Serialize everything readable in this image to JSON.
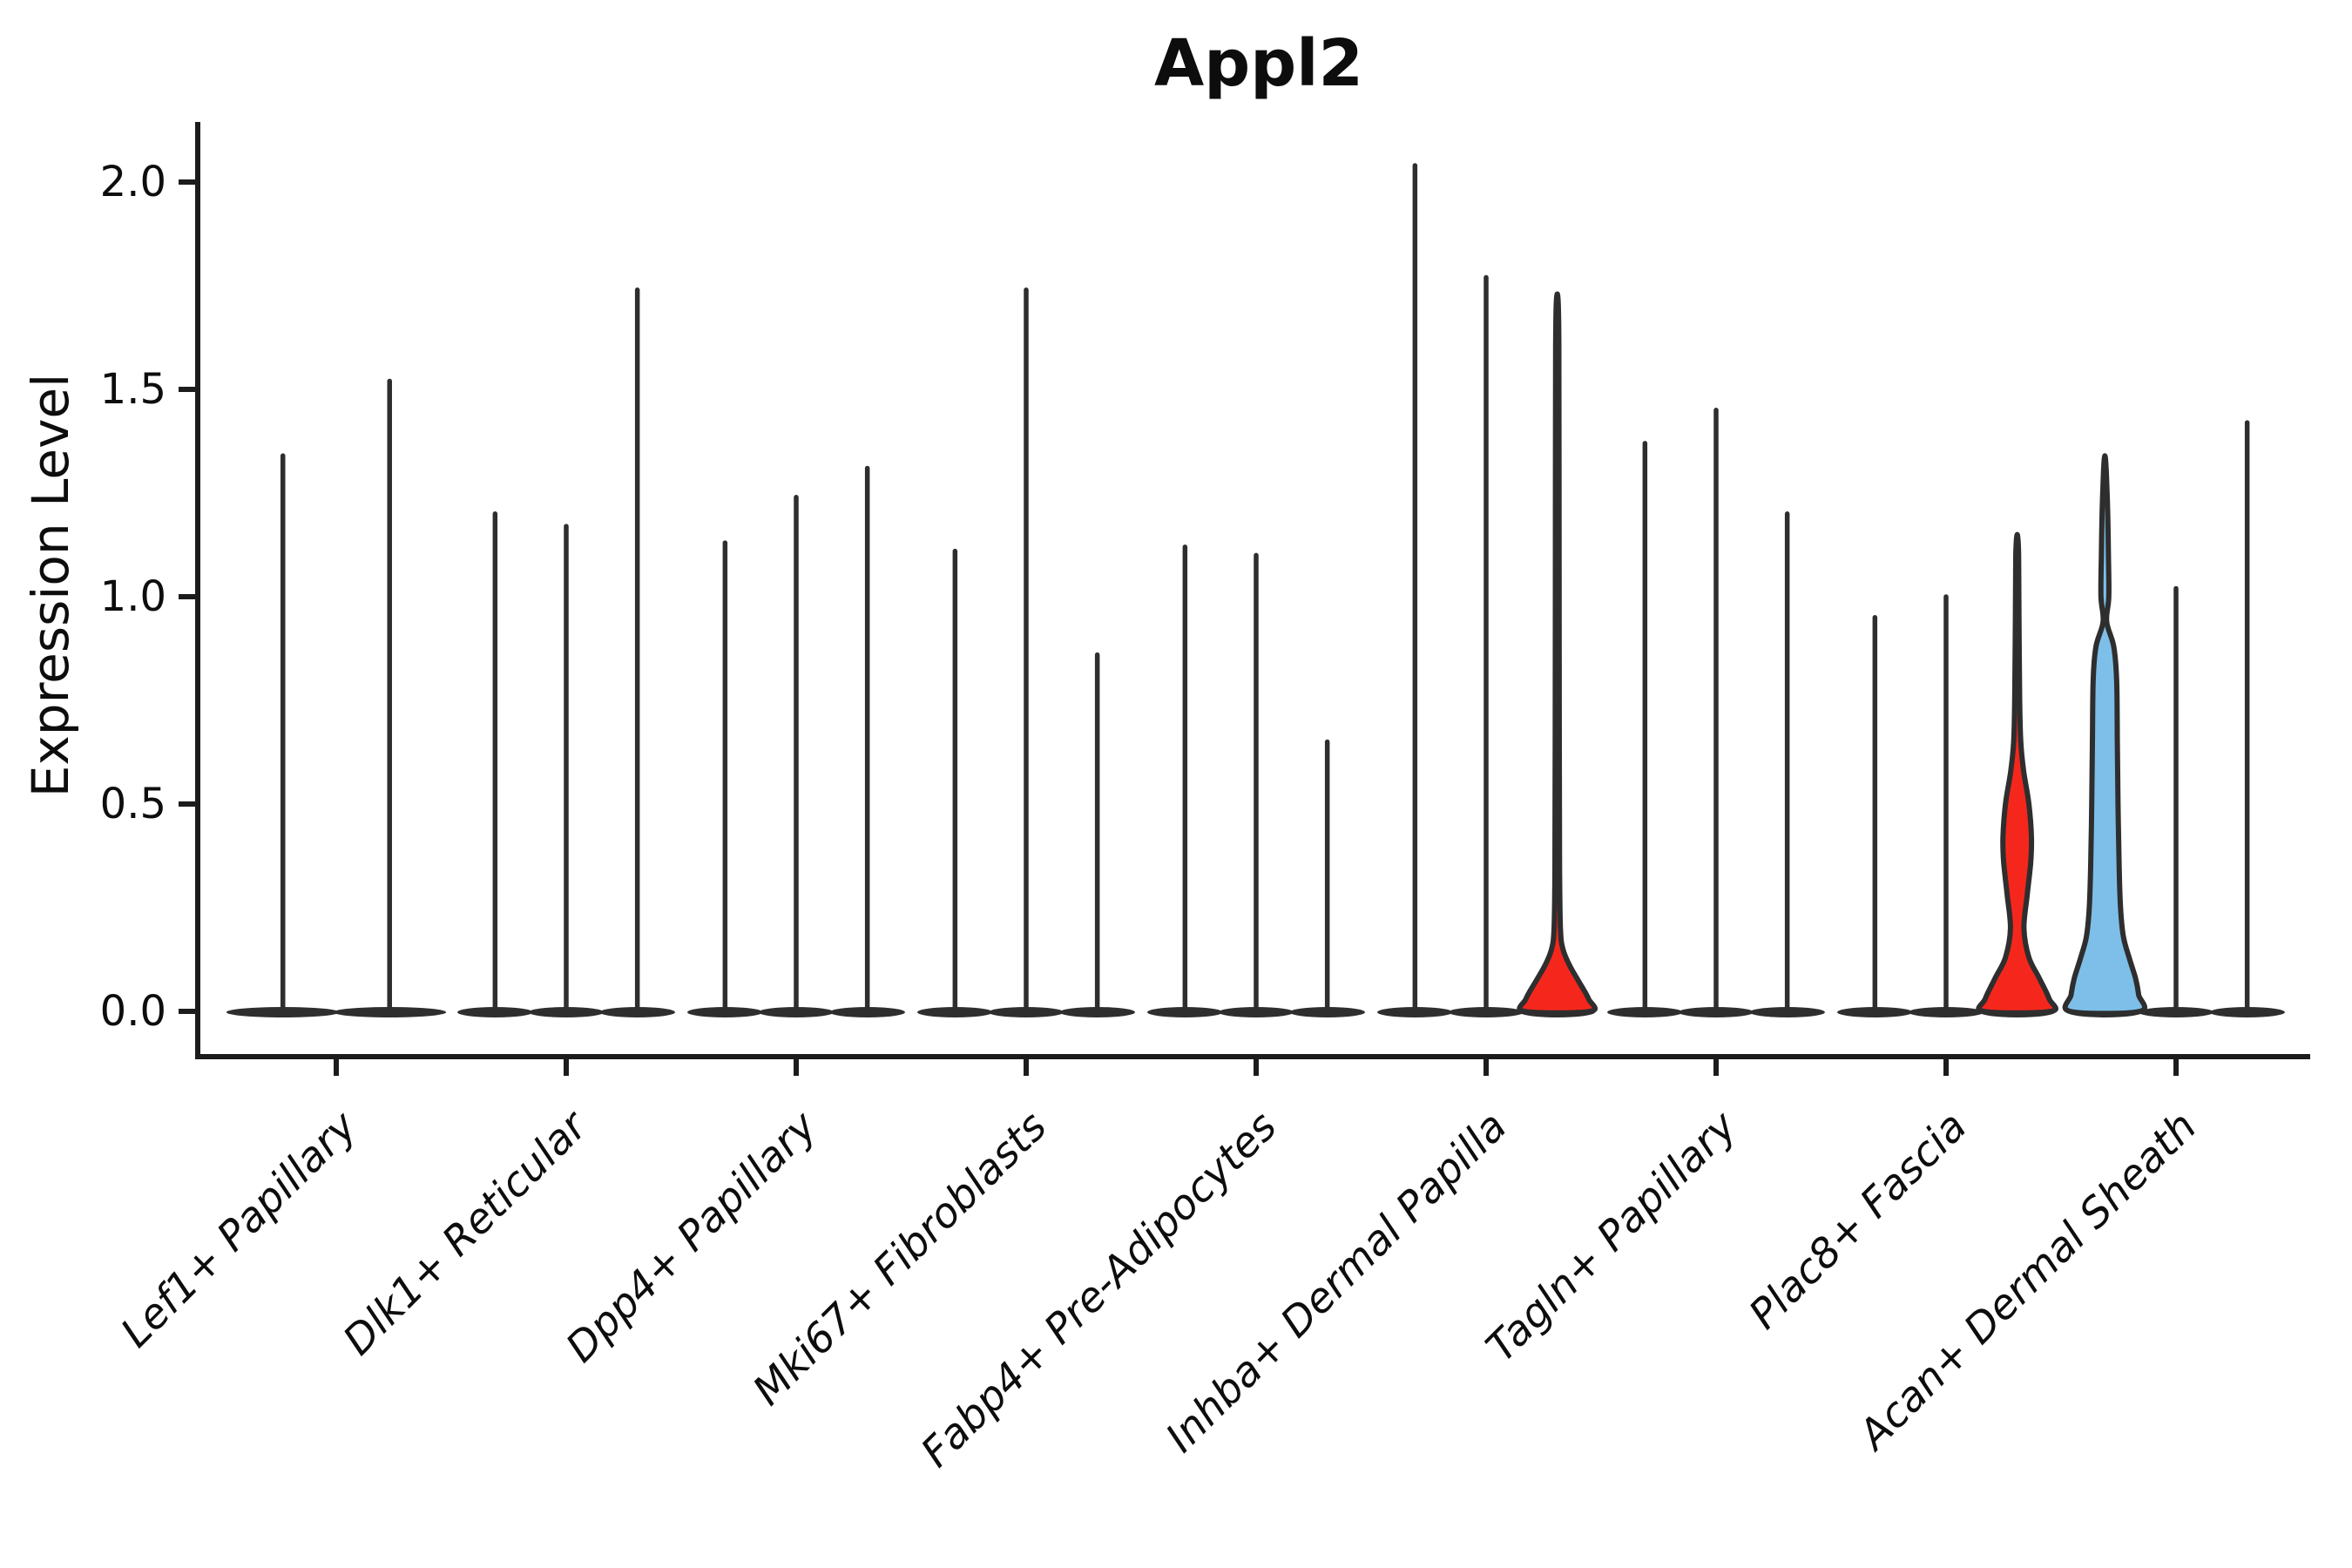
{
  "chart_data": {
    "type": "violin",
    "title": "Appl2",
    "ylabel": "Expression Level",
    "xlabel": "",
    "yticks": [
      "0.0",
      "0.5",
      "1.0",
      "1.5",
      "2.0"
    ],
    "ytick_values": [
      0.0,
      0.5,
      1.0,
      1.5,
      2.0
    ],
    "ylim": [
      -0.11,
      2.15
    ],
    "grid": "off",
    "legend": "none",
    "colors": {
      "violin_outline": "#2e2e2e",
      "axis": "#1c1c1c",
      "text": "#0d0d0d",
      "highlight_red": "#f5271d",
      "highlight_blue": "#7dbfe9",
      "background": "#ffffff"
    },
    "note": "Each cell-type group contains thin violins (near-zero density bodies with tall max-expression spikes). Highlighted bodies: Inhba+ Dermal Papilla violin 3 (red), Plac8+ Fascia violin 3 (red), Acan+ Dermal Sheath violin 1 (blue).",
    "groups": [
      {
        "label": "Lef1+ Papillary",
        "violins": [
          {
            "max": 1.34
          },
          {
            "max": 1.52
          }
        ]
      },
      {
        "label": "Dlk1+ Reticular",
        "violins": [
          {
            "max": 1.2
          },
          {
            "max": 1.17
          },
          {
            "max": 1.74
          }
        ]
      },
      {
        "label": "Dpp4+ Papillary",
        "violins": [
          {
            "max": 1.13
          },
          {
            "max": 1.24
          },
          {
            "max": 1.31
          }
        ]
      },
      {
        "label": "Mki67+ Fibroblasts",
        "violins": [
          {
            "max": 1.11
          },
          {
            "max": 1.74
          },
          {
            "max": 0.86
          }
        ]
      },
      {
        "label": "Fabp4+ Pre-Adipocytes",
        "violins": [
          {
            "max": 1.12
          },
          {
            "max": 1.1
          },
          {
            "max": 0.65
          }
        ]
      },
      {
        "label": "Inhba+ Dermal Papilla",
        "violins": [
          {
            "max": 2.04
          },
          {
            "max": 1.77
          },
          {
            "max": 1.73,
            "fill": "#f5271d",
            "profile": [
              [
                0.0,
                0.93
              ],
              [
                0.03,
                0.88
              ],
              [
                0.07,
                0.62
              ],
              [
                0.11,
                0.35
              ],
              [
                0.15,
                0.16
              ],
              [
                0.2,
                0.09
              ],
              [
                0.35,
                0.065
              ],
              [
                0.8,
                0.055
              ],
              [
                1.3,
                0.05
              ],
              [
                1.6,
                0.045
              ],
              [
                1.7,
                0.03
              ],
              [
                1.73,
                0.0
              ]
            ]
          }
        ]
      },
      {
        "label": "Tagln+ Papillary",
        "violins": [
          {
            "max": 1.37
          },
          {
            "max": 1.45
          },
          {
            "max": 1.2
          }
        ]
      },
      {
        "label": "Plac8+ Fascia",
        "violins": [
          {
            "max": 0.95
          },
          {
            "max": 1.0
          },
          {
            "max": 1.15,
            "fill": "#f5271d",
            "profile": [
              [
                0.0,
                0.95
              ],
              [
                0.03,
                0.9
              ],
              [
                0.08,
                0.62
              ],
              [
                0.13,
                0.33
              ],
              [
                0.2,
                0.19
              ],
              [
                0.28,
                0.28
              ],
              [
                0.36,
                0.38
              ],
              [
                0.42,
                0.4
              ],
              [
                0.5,
                0.33
              ],
              [
                0.58,
                0.18
              ],
              [
                0.65,
                0.1
              ],
              [
                0.75,
                0.07
              ],
              [
                0.95,
                0.05
              ],
              [
                1.1,
                0.04
              ],
              [
                1.15,
                0.0
              ]
            ]
          }
        ]
      },
      {
        "label": "Acan+ Dermal Sheath",
        "violins": [
          {
            "max": 1.34,
            "fill": "#7dbfe9",
            "profile": [
              [
                0.0,
                0.98
              ],
              [
                0.04,
                0.95
              ],
              [
                0.08,
                0.86
              ],
              [
                0.13,
                0.68
              ],
              [
                0.18,
                0.52
              ],
              [
                0.25,
                0.44
              ],
              [
                0.35,
                0.4
              ],
              [
                0.5,
                0.37
              ],
              [
                0.65,
                0.35
              ],
              [
                0.8,
                0.33
              ],
              [
                0.88,
                0.25
              ],
              [
                0.94,
                0.05
              ],
              [
                1.0,
                0.11
              ],
              [
                1.1,
                0.1
              ],
              [
                1.2,
                0.08
              ],
              [
                1.3,
                0.04
              ],
              [
                1.34,
                0.0
              ]
            ]
          },
          {
            "max": 1.02
          },
          {
            "max": 1.42
          }
        ]
      }
    ]
  }
}
